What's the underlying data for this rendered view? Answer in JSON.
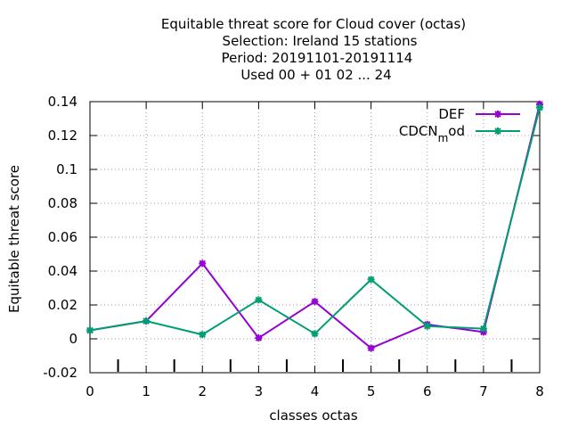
{
  "chart_data": {
    "type": "line",
    "title_lines": [
      "Equitable threat score  for Cloud cover (octas)",
      "Selection: Ireland     15 stations",
      "Period: 20191101-20191114",
      "Used  00 + 01 02 ... 24"
    ],
    "xlabel": "classes octas",
    "ylabel": "Equitable threat score",
    "xlim": [
      0,
      8
    ],
    "ylim": [
      -0.02,
      0.14
    ],
    "x_ticks": [
      "0",
      "1",
      "2",
      "3",
      "4",
      "5",
      "6",
      "7",
      "8"
    ],
    "y_ticks": [
      "-0.02",
      "0",
      "0.02",
      "0.04",
      "0.06",
      "0.08",
      "0.1",
      "0.12",
      "0.14"
    ],
    "grid": true,
    "legend_position": "top-right",
    "x": [
      0,
      1,
      2,
      3,
      4,
      5,
      6,
      7,
      8
    ],
    "series": [
      {
        "name": "DEF",
        "color": "#9400d3",
        "values": [
          0.005,
          0.0105,
          0.0445,
          0.0005,
          0.022,
          -0.0055,
          0.0085,
          0.004,
          0.1385
        ]
      },
      {
        "name": "CDCN_mod",
        "legend_main": "CDCN",
        "legend_sub": "m",
        "legend_tail": "od",
        "color": "#009e73",
        "values": [
          0.005,
          0.0105,
          0.0025,
          0.023,
          0.003,
          0.035,
          0.0075,
          0.006,
          0.1365
        ]
      }
    ]
  }
}
